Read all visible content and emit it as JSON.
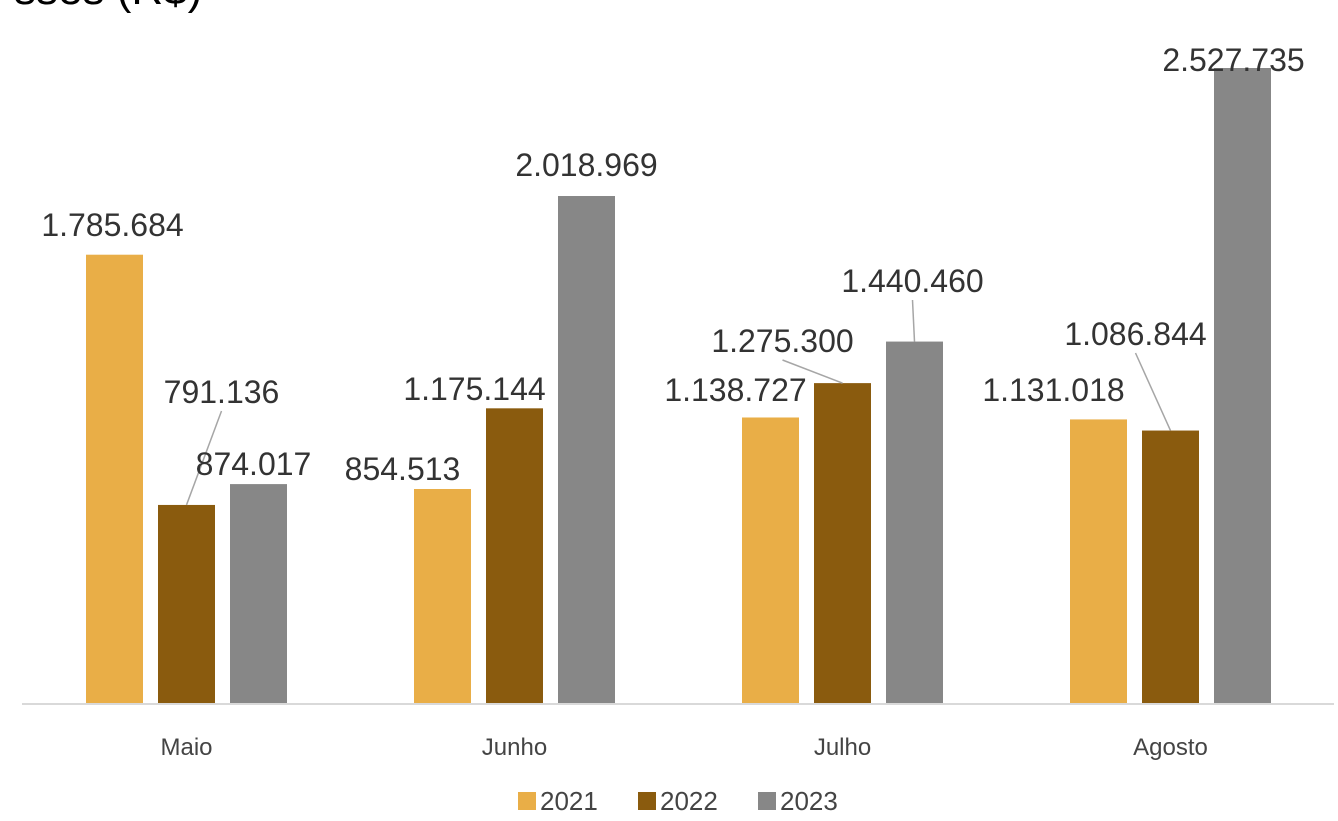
{
  "chart_data": {
    "type": "bar",
    "title": "",
    "title_fragment": "sses (R$)",
    "categories": [
      "Maio",
      "Junho",
      "Julho",
      "Agosto"
    ],
    "series": [
      {
        "name": "2021",
        "color": "#E9AE47",
        "values": [
          1785684,
          854513,
          1138727,
          1131018
        ],
        "labels": [
          "1.785.684",
          "854.513",
          "1.138.727",
          "1.131.018"
        ]
      },
      {
        "name": "2022",
        "color": "#8A5B0E",
        "values": [
          791136,
          1175144,
          1275300,
          1086844
        ],
        "labels": [
          "791.136",
          "1.175.144",
          "1.275.300",
          "1.086.844"
        ]
      },
      {
        "name": "2023",
        "color": "#878787",
        "values": [
          874017,
          2018969,
          1440460,
          2527735
        ],
        "labels": [
          "874.017",
          "2.018.969",
          "1.440.460",
          "2.527.735"
        ]
      }
    ],
    "xlabel": "",
    "ylabel": "",
    "ylim": [
      0,
      2600000
    ],
    "grid": false,
    "legend": "bottom"
  }
}
